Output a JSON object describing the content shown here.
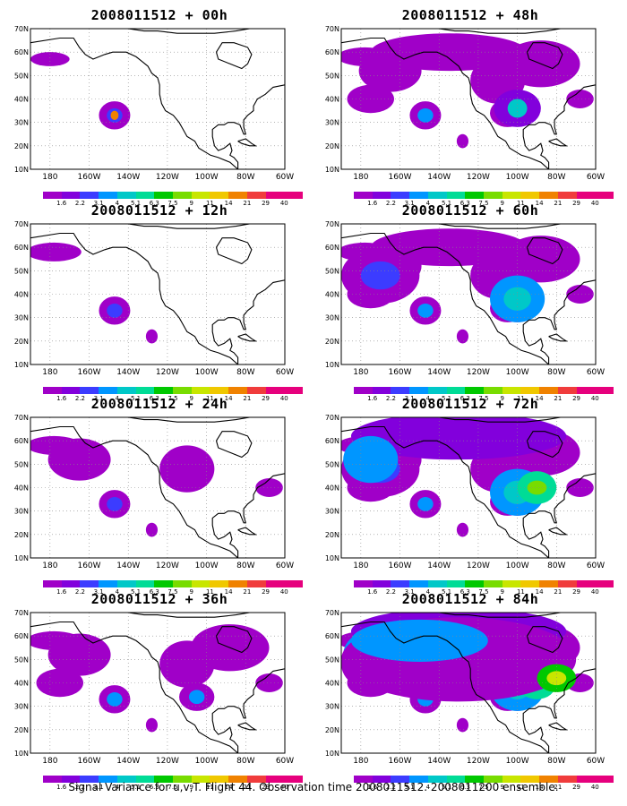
{
  "caption": "Signal Variance for u,v,T. Flight 44. Observation time 2008011512. 2008011200 ensemble.",
  "axes": {
    "lon_ticks": [
      "180",
      "160W",
      "140W",
      "120W",
      "100W",
      "80W",
      "60W"
    ],
    "lat_ticks": [
      "70N",
      "60N",
      "50N",
      "40N",
      "30N",
      "20N",
      "10N"
    ]
  },
  "colorbar": {
    "labels": [
      "1.6",
      "2.2",
      "3.1",
      "4",
      "5.1",
      "6.3",
      "7.5",
      "9",
      "11",
      "14",
      "21",
      "29",
      "40"
    ],
    "colors": [
      "#a000c8",
      "#8200dc",
      "#3c3cff",
      "#0096ff",
      "#00c8c8",
      "#00dc96",
      "#00c800",
      "#78dc00",
      "#c8e600",
      "#f0c800",
      "#f08200",
      "#f03c3c",
      "#e6007d"
    ]
  },
  "panels": [
    {
      "title": "2008011512 + 00h",
      "level": 0
    },
    {
      "title": "2008011512 + 48h",
      "level": 4
    },
    {
      "title": "2008011512 + 12h",
      "level": 1
    },
    {
      "title": "2008011512 + 60h",
      "level": 5
    },
    {
      "title": "2008011512 + 24h",
      "level": 2
    },
    {
      "title": "2008011512 + 72h",
      "level": 6
    },
    {
      "title": "2008011512 + 36h",
      "level": 3
    },
    {
      "title": "2008011512 + 84h",
      "level": 7
    }
  ]
}
